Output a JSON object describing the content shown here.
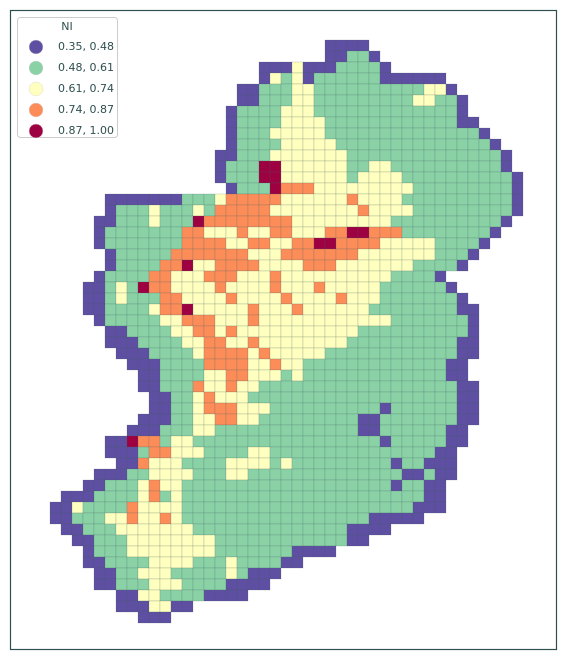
{
  "legend": {
    "title": "NI",
    "entries": [
      {
        "label": "0.35, 0.48",
        "color": "#5e4fa2"
      },
      {
        "label": "0.48, 0.61",
        "color": "#8ad1a6"
      },
      {
        "label": "0.61, 0.74",
        "color": "#ffffbf"
      },
      {
        "label": "0.74, 0.87",
        "color": "#fc8d59"
      },
      {
        "label": "0.87, 1.00",
        "color": "#9e0142"
      }
    ]
  },
  "map": {
    "rows": [
      ".........................0000",
      ".........................00110",
      "...................000200011110",
      "...................02120111111000000",
      ".................00111221111111111220",
      ".................001112211111111122110",
      "................0111122211111111111110",
      "................01111222211111111111100",
      "................011122222111111111111110",
      "................0111122222111111111111110",
      "...............001112222222111111111111110",
      "...............011144222222112211111111110",
      "...............0111442222221222211111111110",
      "................011143332222222221111111110",
      ".....00000001112333332222223222211111111110",
      ".....01112111213333322222222322221111111110",
      "....00111211143333333322222222211111111110",
      "....0111111133222322332223344333111111110",
      "....011111113333223322334433332222211110",
      ".....0111113333333222333333322222221110",
      ".....011113342233332222333222222211110",
      "....01111332223332223222222222211110",
      "...0012143322223222232223222221111110",
      "...00121113322223222232222322211111110",
      "...001111233422222322232222221111111100",
      "....01111122333222322222222222211111110",
      ".....0011112233232222222222211111111110",
      ".....0001111223322322222222111111111100",
      "......000111123333232222211111111111100",
      ".......0001111333322322111111111111100",
      "........001111223322212111111111111100",
      "........0011132232211111111111111111100",
      ".........001123222111111111111111111100",
      ".........001123332221111111111011111100",
      "........0001122332211111111100111111100",
      ".......0001112211111111111110011111100",
      ".....004331221111111111111111101111100",
      ".....00013322211112211111111111111100",
      "......0032221111222212111111111011000",
      "....000112222111221111111111111100100",
      "...001112322111111111111111111101100",
      ".00011112312111111111111111111111100",
      "002111132222111111111111111111111000",
      "0011122322321111111111111111100000",
      ".001112222222111111111111110000",
      "..001112222222211111111111100",
      "...01112222222211111110000",
      "...00111122221112111100",
      "....00112221111121000",
      "....0011122211110000",
      "......002211110000",
      "......0002200",
      "........000"
    ]
  }
}
